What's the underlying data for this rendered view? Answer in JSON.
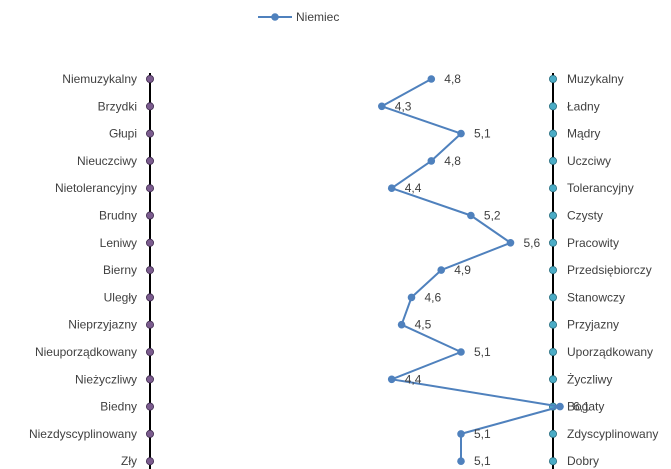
{
  "chart_data": {
    "type": "line",
    "orientation": "horizontal-profile",
    "legend": {
      "placement": "top-left",
      "entries": [
        "Niemiec"
      ]
    },
    "series": [
      {
        "name": "Niemiec",
        "color": "#4F81BD",
        "values": [
          4.8,
          4.3,
          5.1,
          4.8,
          4.4,
          5.2,
          5.6,
          4.9,
          4.6,
          4.5,
          5.1,
          4.4,
          6.1,
          5.1,
          5.1
        ],
        "labels": [
          "4,8",
          "4,3",
          "5,1",
          "4,8",
          "4,4",
          "5,2",
          "5,6",
          "4,9",
          "4,6",
          "4,5",
          "5,1",
          "4,4",
          "6,1",
          "5,1",
          "5,1"
        ]
      }
    ],
    "left_labels": [
      "Niemuzykalny",
      "Brzydki",
      "Głupi",
      "Nieuczciwy",
      "Nietolerancyjny",
      "Brudny",
      "Leniwy",
      "Bierny",
      "Uległy",
      "Nieprzyjazny",
      "Nieuporządkowany",
      "Nieżyczliwy",
      "Biedny",
      "Niezdyscyplinowany",
      "Zły"
    ],
    "right_labels": [
      "Muzykalny",
      "Ładny",
      "Mądry",
      "Uczciwy",
      "Tolerancyjny",
      "Czysty",
      "Pracowity",
      "Przedsiębiorczy",
      "Stanowczy",
      "Przyjazny",
      "Uporządkowany",
      "Życzliwy",
      "Bogaty",
      "Zdyscyplinowany",
      "Dobry"
    ],
    "left_axis_color": "#7B5C8E",
    "right_axis_color": "#4BACC6",
    "grid": false
  }
}
